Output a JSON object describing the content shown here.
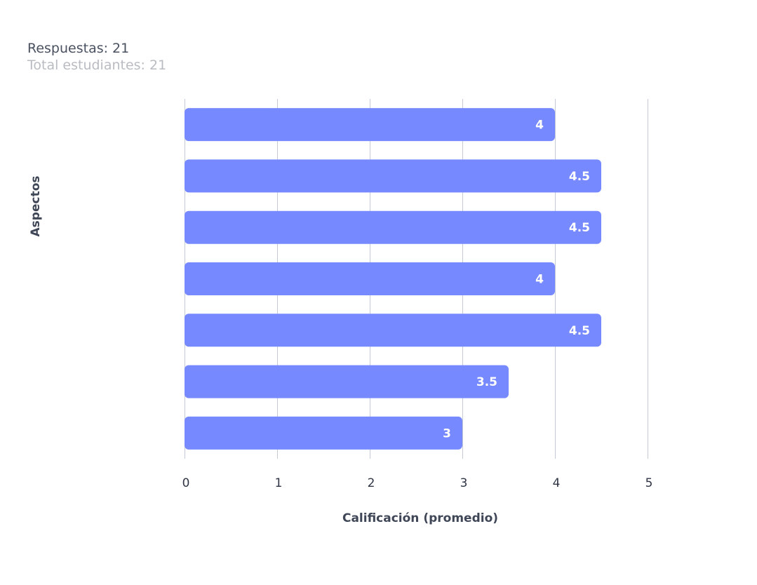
{
  "header": {
    "responses": "Respuestas: 21",
    "total_students": "Total estudiantes: 21"
  },
  "chart_data": {
    "type": "bar",
    "orientation": "horizontal",
    "categories": [
      "",
      "",
      "",
      "",
      "",
      "",
      ""
    ],
    "values": [
      4,
      4.5,
      4.5,
      4,
      4.5,
      3.5,
      3
    ],
    "data_labels": [
      "4",
      "4.5",
      "4.5",
      "4",
      "4.5",
      "3.5",
      "3"
    ],
    "xlabel": "Calificación (promedio)",
    "ylabel": "Aspectos",
    "xlim": [
      0,
      5
    ],
    "x_ticks": [
      "0",
      "1",
      "2",
      "3",
      "4",
      "5"
    ],
    "grid": "vertical",
    "colors": {
      "bar": "#7689ff",
      "grid": "#c5cbd6",
      "label": "#ffffff"
    }
  }
}
